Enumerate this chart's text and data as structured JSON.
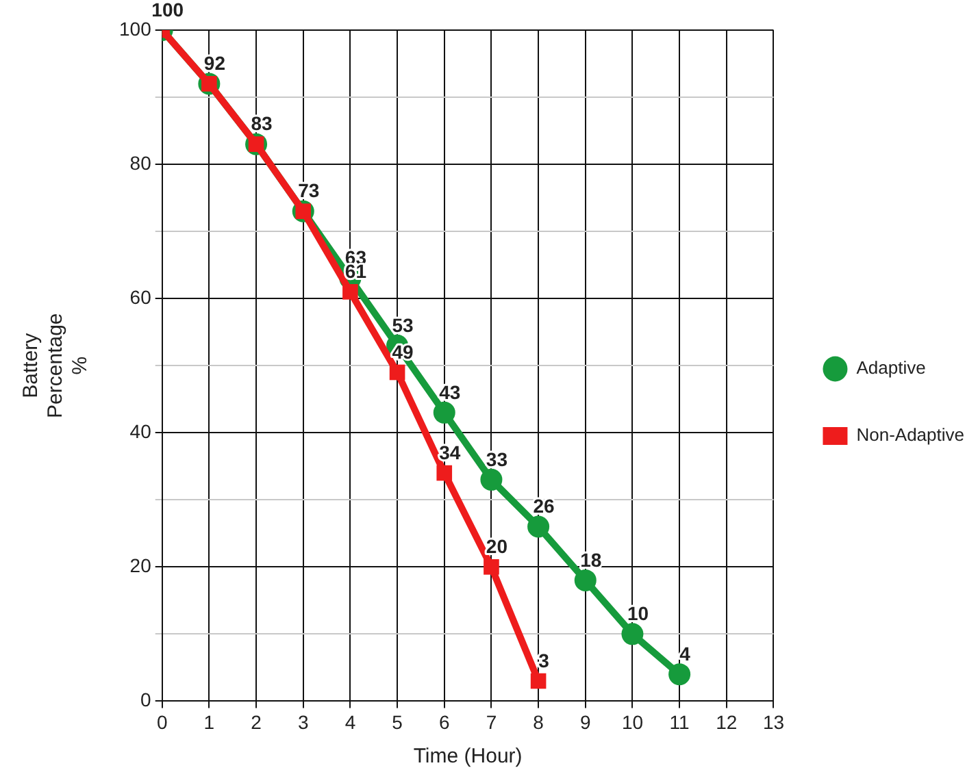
{
  "chart_data": {
    "type": "line",
    "xlabel": "Time (Hour)",
    "ylabel": "Battery Percentage %",
    "x": [
      0,
      1,
      2,
      3,
      4,
      5,
      6,
      7,
      8,
      9,
      10,
      11
    ],
    "series": [
      {
        "name": "Adaptive",
        "color": "#169b3c",
        "marker": "circle",
        "values": [
          100,
          92,
          83,
          73,
          63,
          53,
          43,
          33,
          26,
          18,
          10,
          4
        ]
      },
      {
        "name": "Non-Adaptive",
        "color": "#ee1c1c",
        "marker": "square",
        "values": [
          100,
          92,
          83,
          73,
          61,
          49,
          34,
          20,
          3,
          null,
          null,
          null
        ],
        "value_labels": [
          null,
          null,
          null,
          null,
          "61",
          "49",
          "34",
          "20",
          "3",
          null,
          null,
          null
        ]
      }
    ],
    "xlim": [
      0,
      13
    ],
    "xticks": [
      0,
      1,
      2,
      3,
      4,
      5,
      6,
      7,
      8,
      9,
      10,
      11,
      12,
      13
    ],
    "ylim": [
      0,
      100
    ],
    "yticks": [
      0,
      {
        "value": 10,
        "label": null
      },
      20,
      {
        "value": 30,
        "label": null
      },
      40,
      {
        "value": 50,
        "label": null
      },
      60,
      {
        "value": 70,
        "label": null
      },
      80,
      {
        "value": 90,
        "label": null
      },
      100
    ],
    "grid": true,
    "legend": "right",
    "data_labels": true
  }
}
